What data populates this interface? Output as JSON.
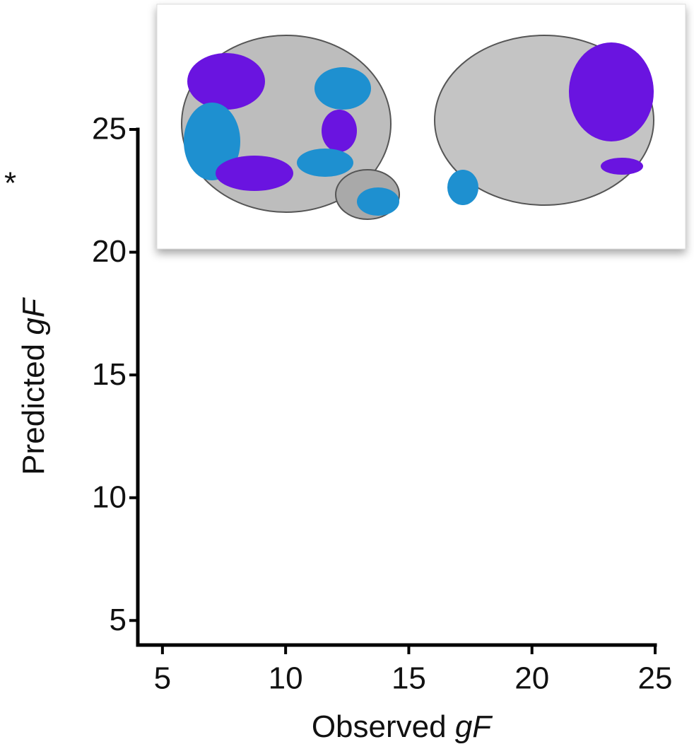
{
  "chart_data": {
    "type": "scatter",
    "xlabel": [
      "Observed",
      "gF"
    ],
    "ylabel": [
      "Predicted",
      "gF"
    ],
    "annotation": "*",
    "xlim": [
      4,
      25
    ],
    "xticks": [
      5,
      10,
      15,
      20,
      25
    ],
    "ylim": [
      4,
      25
    ],
    "yticks": [
      5,
      10,
      15,
      20,
      25
    ],
    "grid": false
  }
}
